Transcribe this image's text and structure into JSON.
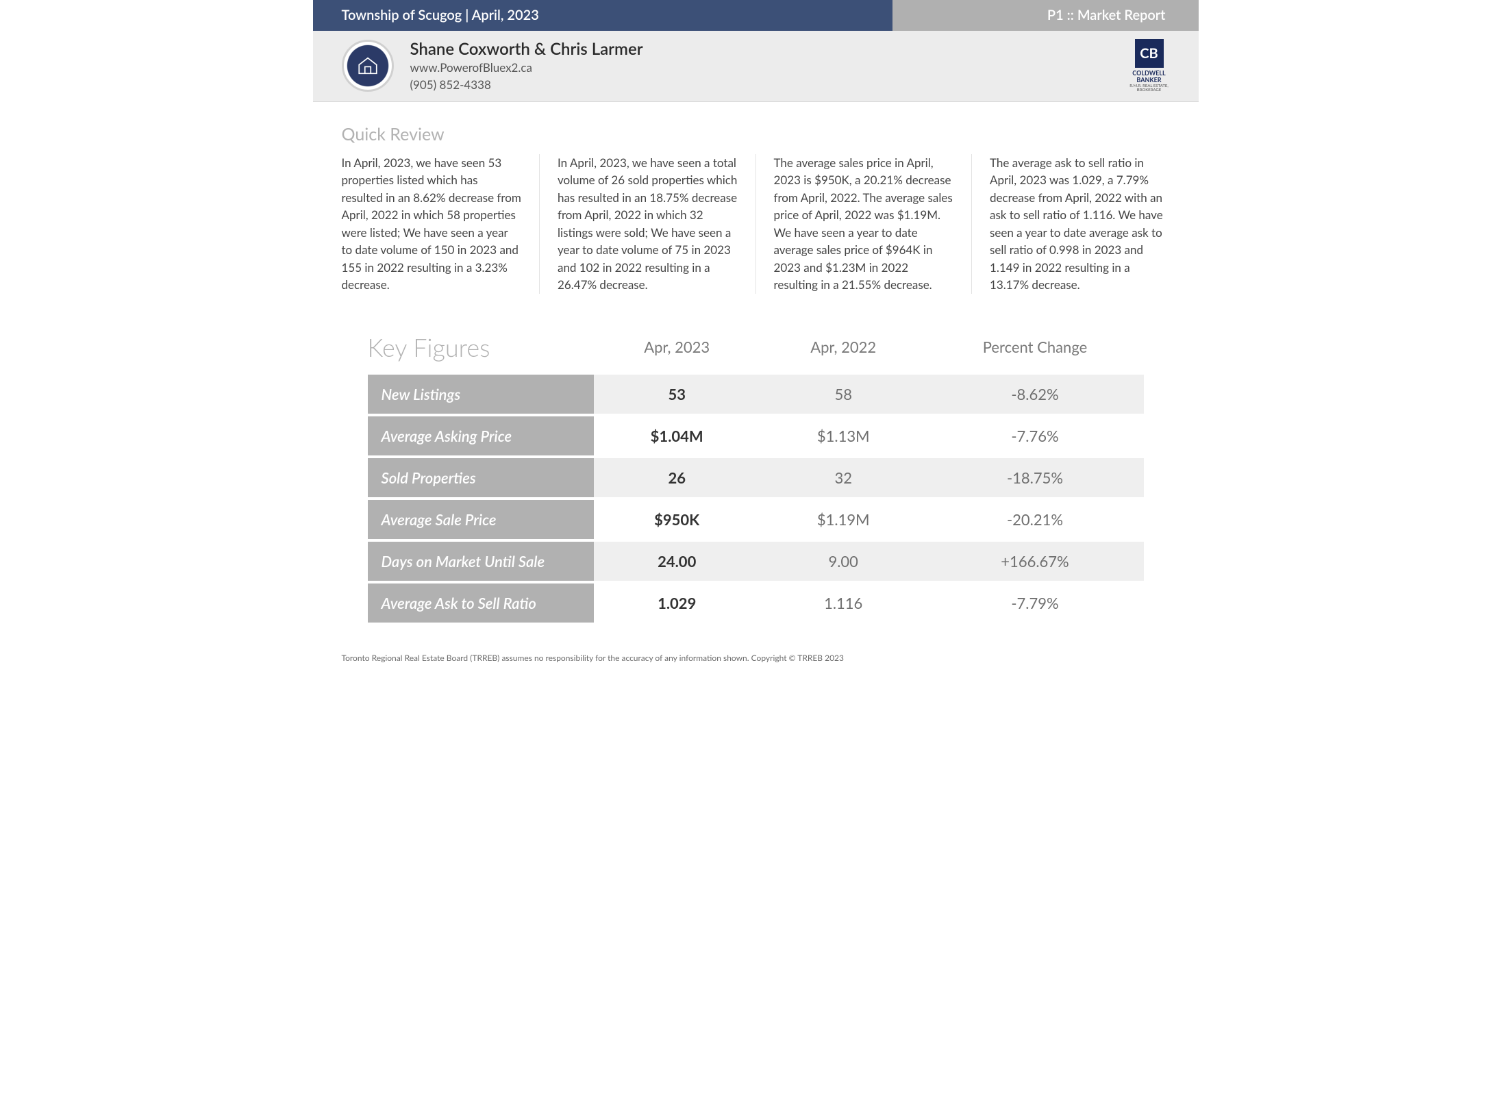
{
  "header": {
    "left": "Township of Scugog | April, 2023",
    "right": "P1 :: Market Report"
  },
  "agent": {
    "name": "Shane Coxworth & Chris Larmer",
    "website": "www.PowerofBluex2.ca",
    "phone": "(905) 852-4338",
    "brand_initials": "CB",
    "brand_line1": "COLDWELL",
    "brand_line2": "BANKER",
    "brand_tiny": "R.M.R. REAL ESTATE, BROKERAGE"
  },
  "sections": {
    "quick_review_title": "Quick Review",
    "key_figures_title": "Key Figures"
  },
  "review": {
    "col1": "In April, 2023, we have seen 53 properties listed which has resulted in an 8.62% decrease from April, 2022 in which 58 properties were listed; We have seen a year to date volume of 150 in 2023 and 155 in 2022 resulting in a 3.23% decrease.",
    "col2": "In April, 2023, we have seen a total volume of 26 sold properties which has resulted in an 18.75% decrease from April, 2022 in which 32 listings were sold; We have seen a year to date volume of 75 in 2023 and 102 in 2022 resulting in a 26.47% decrease.",
    "col3": "The average sales price in April, 2023 is $950K, a 20.21% decrease from April, 2022. The average sales price of April, 2022 was $1.19M. We have seen a year to date average sales price of $964K in 2023 and $1.23M in 2022 resulting in a 21.55% decrease.",
    "col4": "The average ask to sell ratio in April, 2023 was 1.029, a 7.79% decrease from April, 2022 with an ask to sell ratio of 1.116. We have seen a year to date average ask to sell ratio of 0.998 in 2023 and 1.149 in 2022 resulting in a 13.17% decrease."
  },
  "table": {
    "columns": {
      "current": "Apr, 2023",
      "previous": "Apr, 2022",
      "change": "Percent Change"
    },
    "rows": [
      {
        "label": "New Listings",
        "current": "53",
        "previous": "58",
        "change": "-8.62%"
      },
      {
        "label": "Average Asking Price",
        "current": "$1.04M",
        "previous": "$1.13M",
        "change": "-7.76%"
      },
      {
        "label": "Sold Properties",
        "current": "26",
        "previous": "32",
        "change": "-18.75%"
      },
      {
        "label": "Average Sale Price",
        "current": "$950K",
        "previous": "$1.19M",
        "change": "-20.21%"
      },
      {
        "label": "Days on Market Until Sale",
        "current": "24.00",
        "previous": "9.00",
        "change": "+166.67%"
      },
      {
        "label": "Average Ask to Sell Ratio",
        "current": "1.029",
        "previous": "1.116",
        "change": "-7.79%"
      }
    ]
  },
  "footer": "Toronto Regional Real Estate Board (TRREB) assumes no responsibility for the accuracy of any information shown. Copyright © TRREB 2023",
  "colors": {
    "header_blue": "#3c5077",
    "header_gray": "#b0b0b0",
    "label_gray": "#b1b1b1",
    "row_shade": "#efefef",
    "brand_blue": "#1a2a5b"
  }
}
